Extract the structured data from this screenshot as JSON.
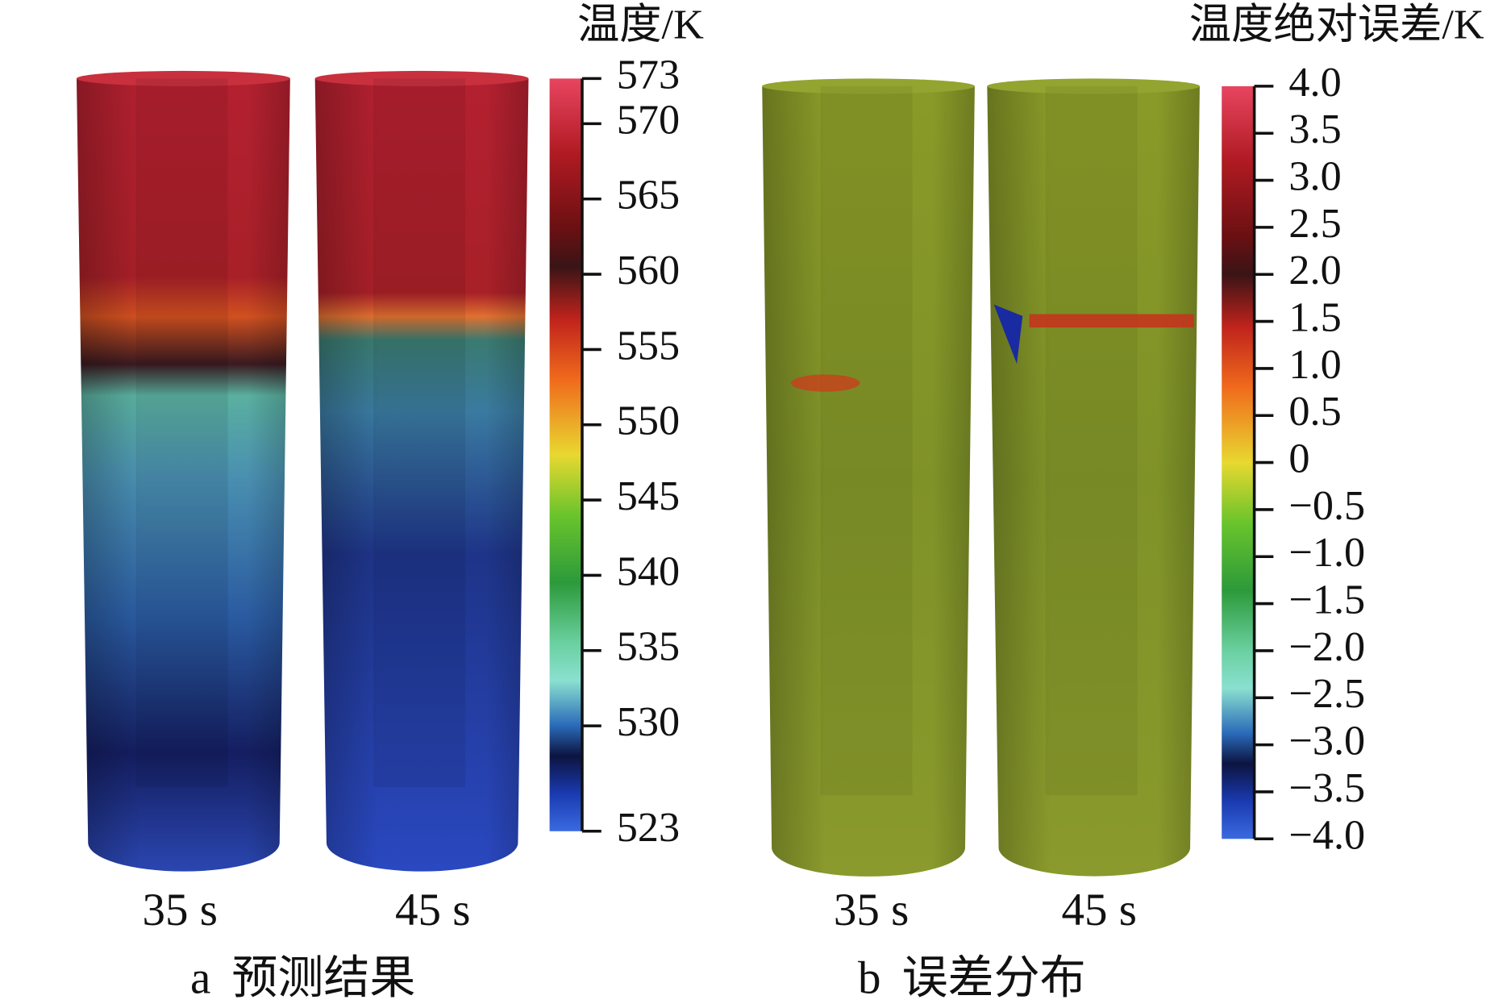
{
  "panels": [
    {
      "colorbar": {
        "title": "温度/K",
        "range": [
          523,
          573
        ],
        "ticks": [
          573,
          570,
          565,
          560,
          555,
          550,
          545,
          540,
          535,
          530,
          523
        ]
      },
      "cylinders": [
        "35 s",
        "45 s"
      ],
      "caption": {
        "label": "a",
        "text": "预测结果"
      }
    },
    {
      "colorbar": {
        "title": "温度绝对误差/K",
        "range": [
          -4,
          4
        ],
        "ticks": [
          {
            "value": 4,
            "label": "4.0"
          },
          3.5,
          {
            "value": 3,
            "label": "3.0"
          },
          2.5,
          {
            "value": 2,
            "label": "2.0"
          },
          1.5,
          {
            "value": 1,
            "label": "1.0"
          },
          0.5,
          0,
          {
            "value": -0.5,
            "label": "−0.5"
          },
          {
            "value": -1,
            "label": "−1.0"
          },
          {
            "value": -1.5,
            "label": "−1.5"
          },
          {
            "value": -2,
            "label": "−2.0"
          },
          {
            "value": -2.5,
            "label": "−2.5"
          },
          {
            "value": -3,
            "label": "−3.0"
          },
          {
            "value": -3.5,
            "label": "−3.5"
          },
          {
            "value": -4,
            "label": "−4.0"
          }
        ]
      },
      "cylinders": [
        "35 s",
        "45 s"
      ],
      "caption": {
        "label": "b",
        "text": "误差分布"
      }
    }
  ]
}
